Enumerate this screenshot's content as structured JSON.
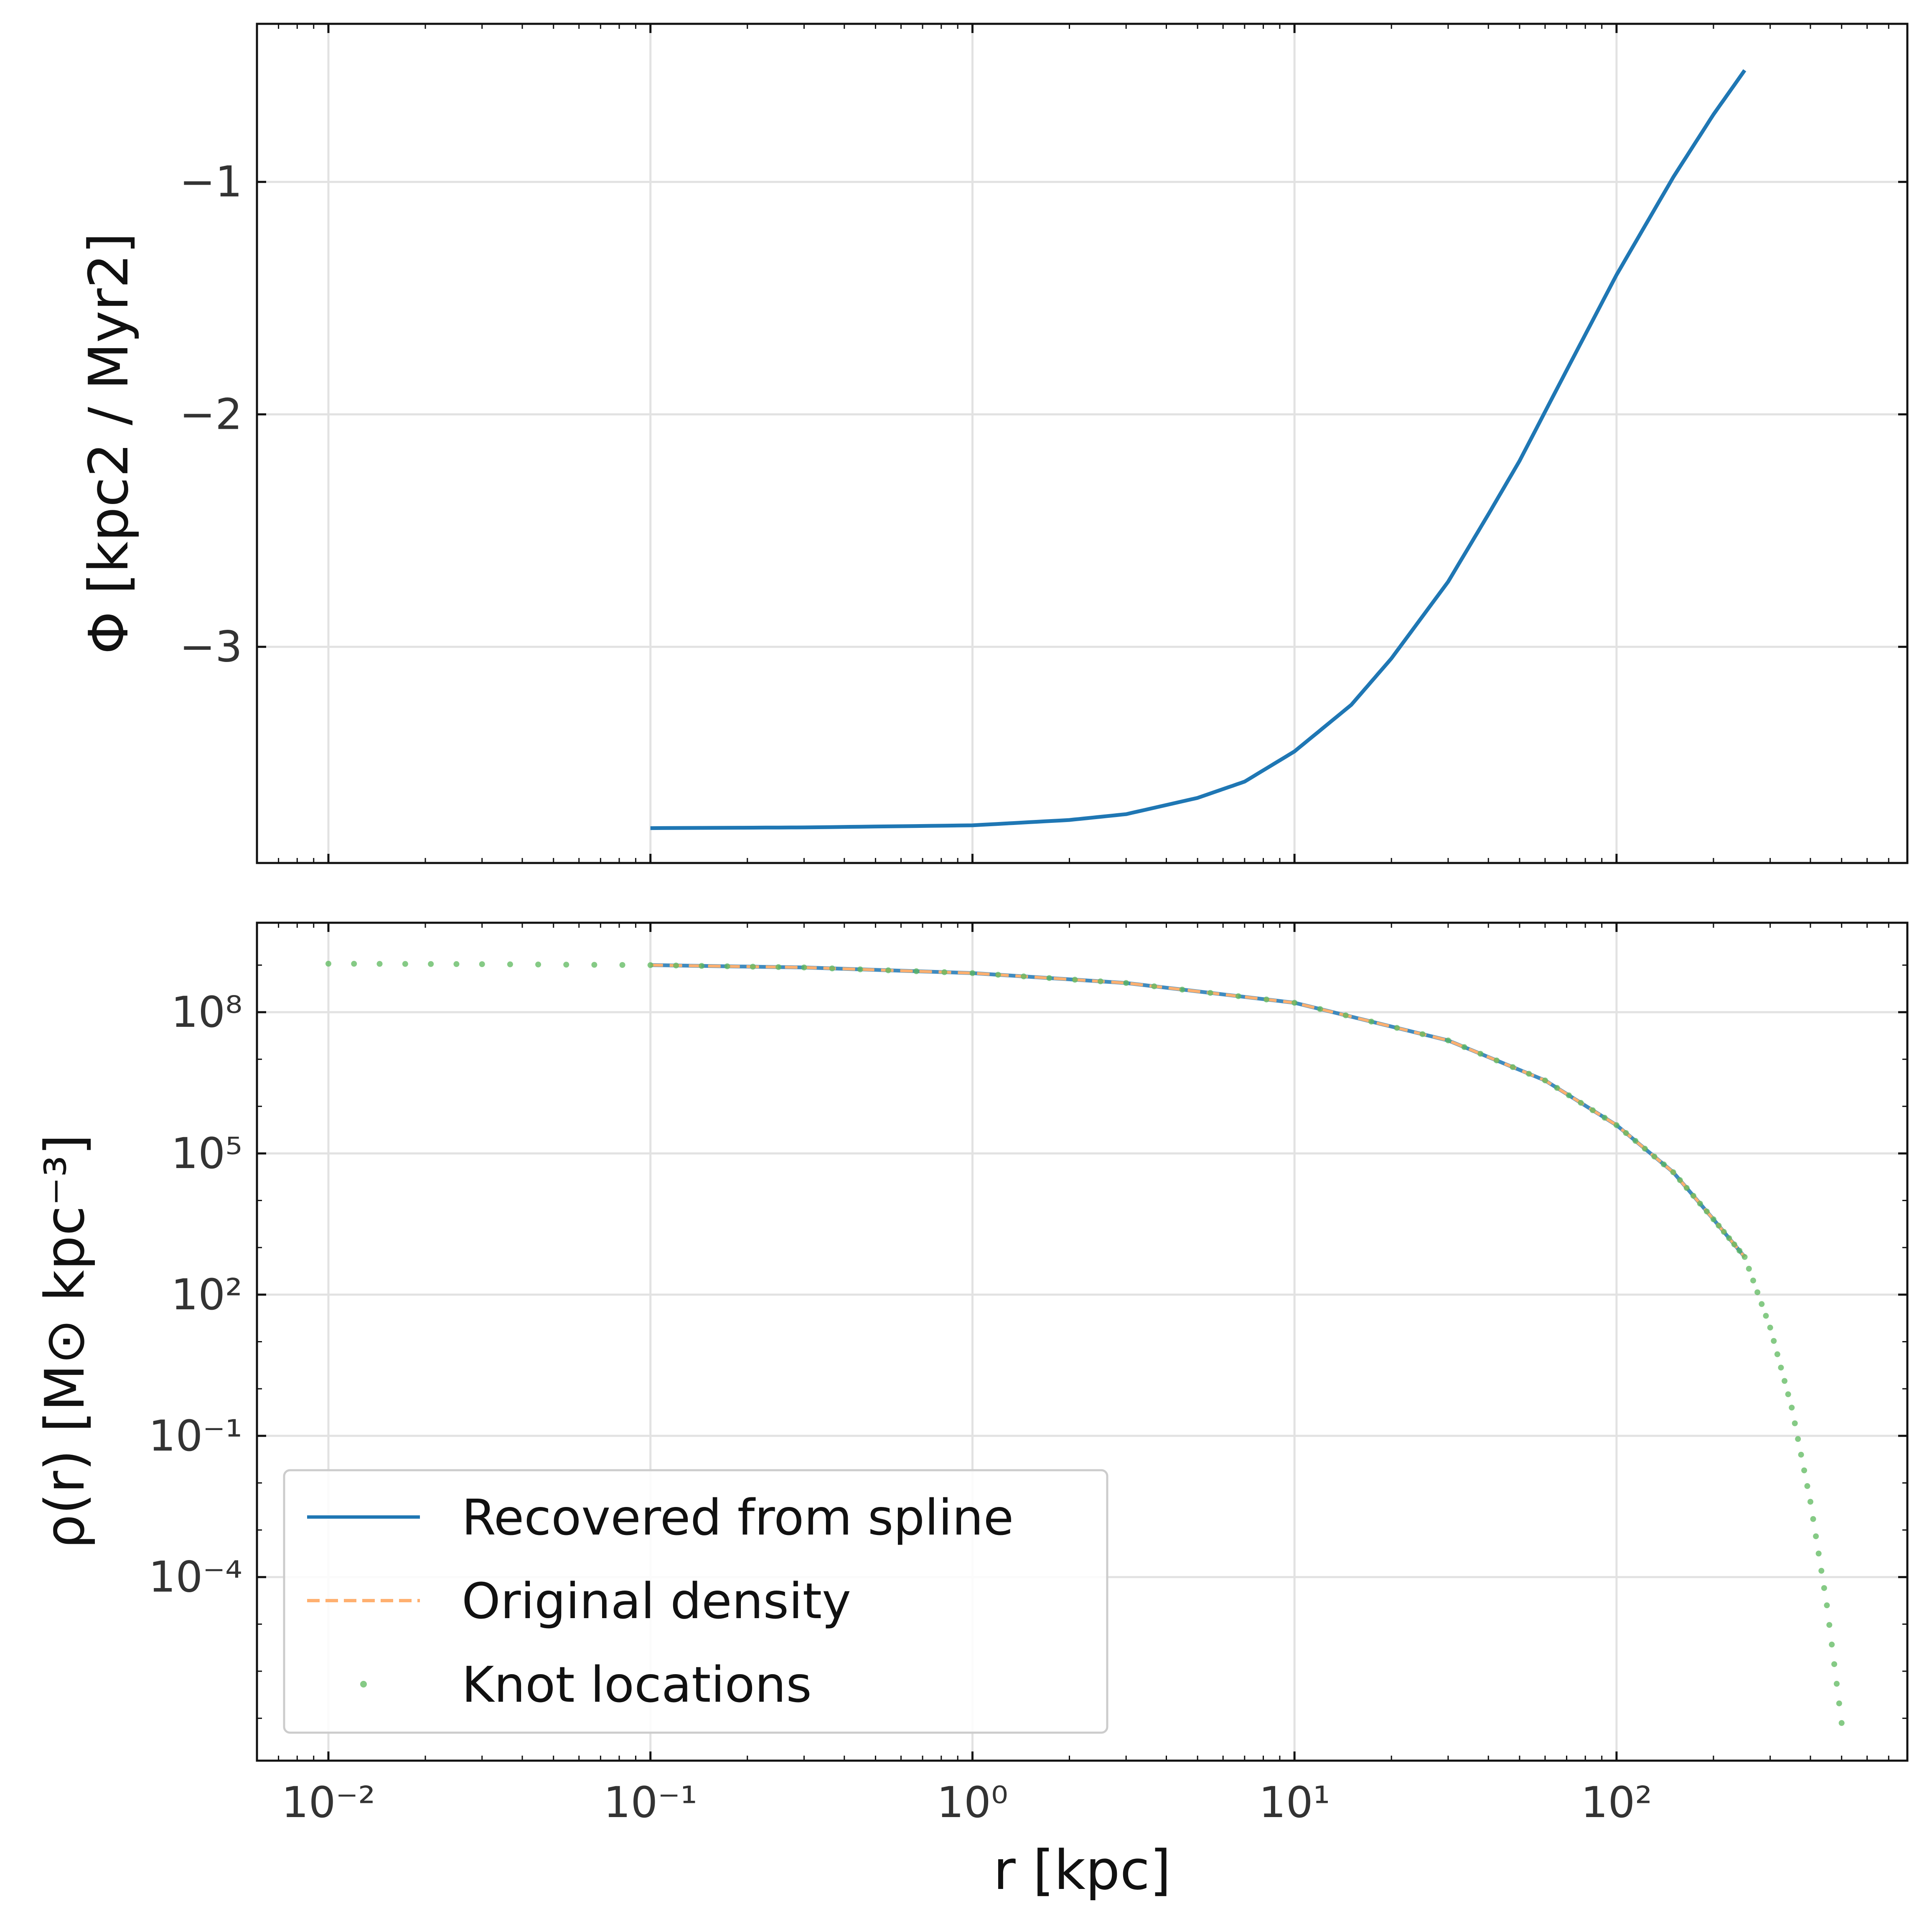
{
  "colors": {
    "recovered": "#1f77b4",
    "original": "#ffb070",
    "knots": "#5cb85c",
    "grid": "#e2e2e2",
    "frame": "#111111",
    "tick_text": "#333333"
  },
  "chart_data": [
    {
      "id": "potential",
      "type": "line",
      "xscale": "log",
      "xlim": [
        0.006,
        800
      ],
      "ylim": [
        -3.93,
        -0.32
      ],
      "grid": true,
      "xlabel": "",
      "ylabel": "Φ [kpc2 / Myr2]",
      "x_ticks": [
        0.01,
        0.1,
        1,
        10,
        100
      ],
      "x_tick_labels": [
        "",
        "",
        "",
        "",
        ""
      ],
      "y_ticks": [
        -3,
        -2,
        -1
      ],
      "y_tick_labels": [
        "−3",
        "−2",
        "−1"
      ],
      "series": [
        {
          "key": "phi",
          "color_key": "recovered",
          "x": [
            0.1,
            0.3,
            1,
            2,
            3,
            5,
            7,
            10,
            15,
            20,
            30,
            40,
            50,
            70,
            100,
            150,
            200,
            250
          ],
          "y": [
            -3.78,
            -3.777,
            -3.768,
            -3.745,
            -3.72,
            -3.65,
            -3.58,
            -3.45,
            -3.25,
            -3.05,
            -2.72,
            -2.43,
            -2.2,
            -1.81,
            -1.4,
            -0.98,
            -0.71,
            -0.52
          ]
        }
      ]
    },
    {
      "id": "density",
      "type": "line",
      "xscale": "log",
      "yscale": "log",
      "xlim": [
        0.006,
        800
      ],
      "ylim_log10": [
        -7.9,
        9.9
      ],
      "grid": true,
      "xlabel": "r [kpc]",
      "ylabel": "ρ(r) [M⊙ kpc⁻³]",
      "x_ticks": [
        0.01,
        0.1,
        1,
        10,
        100
      ],
      "x_tick_labels": [
        "10⁻²",
        "10⁻¹",
        "10⁰",
        "10¹",
        "10²"
      ],
      "y_ticks_log10": [
        -4,
        -1,
        2,
        5,
        8
      ],
      "y_tick_labels": [
        "10⁻⁴",
        "10⁻¹",
        "10²",
        "10⁵",
        "10⁸"
      ],
      "legend_position": "lower-left",
      "series": [
        {
          "key": "recovered",
          "name": "Recovered from spline",
          "color_key": "recovered",
          "style": "solid",
          "x": [
            0.1,
            0.3,
            1,
            3,
            10,
            30,
            60,
            100,
            150,
            200,
            250
          ],
          "y_log10": [
            9.0,
            8.95,
            8.83,
            8.62,
            8.2,
            7.4,
            6.55,
            5.6,
            4.6,
            3.6,
            2.8
          ]
        },
        {
          "key": "original",
          "name": "Original density",
          "color_key": "original",
          "style": "dashed",
          "x": [
            0.1,
            0.3,
            1,
            3,
            10,
            30,
            60,
            100,
            150,
            200,
            250
          ],
          "y_log10": [
            9.0,
            8.95,
            8.83,
            8.62,
            8.2,
            7.4,
            6.55,
            5.6,
            4.6,
            3.6,
            2.8
          ]
        },
        {
          "key": "knots",
          "name": "Knot locations",
          "color_key": "knots",
          "style": "points",
          "x": [
            0.01,
            0.03,
            0.1,
            0.3,
            1,
            3,
            10,
            30,
            60,
            100,
            150,
            200,
            250,
            300,
            350,
            400,
            450,
            500
          ],
          "y_log10": [
            9.03,
            9.02,
            9.0,
            8.95,
            8.83,
            8.62,
            8.2,
            7.4,
            6.55,
            5.6,
            4.6,
            3.6,
            2.8,
            1.3,
            -0.4,
            -2.4,
            -4.6,
            -7.1
          ]
        }
      ]
    }
  ]
}
